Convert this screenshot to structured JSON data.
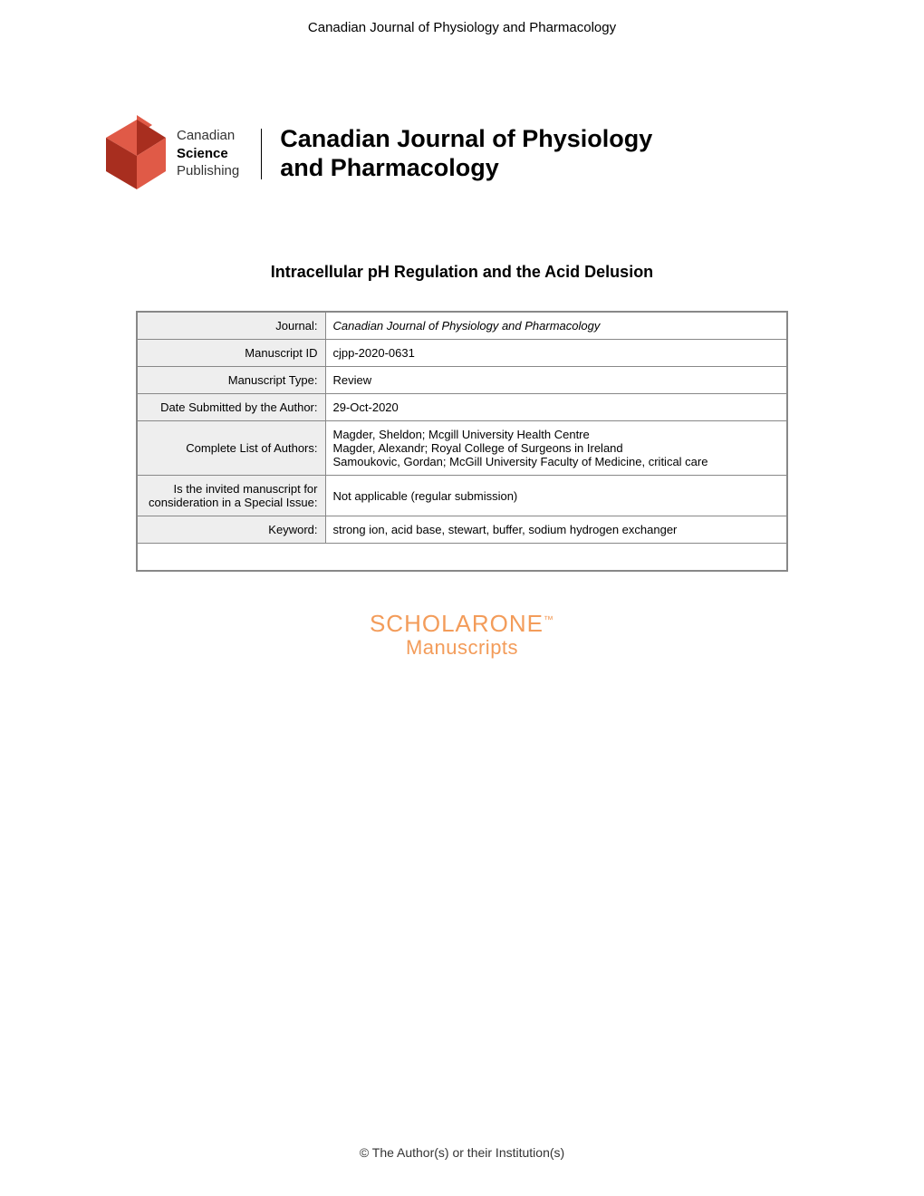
{
  "header": {
    "journal_name": "Canadian Journal of Physiology and Pharmacology"
  },
  "logo": {
    "publisher_line1": "Canadian",
    "publisher_line2": "Science",
    "publisher_line3": "Publishing",
    "journal_title_line1": "Canadian Journal of Physiology",
    "journal_title_line2": "and Pharmacology",
    "colors": {
      "logo_light": "#e05a47",
      "logo_dark": "#a82e1f"
    }
  },
  "manuscript": {
    "title": "Intracellular pH Regulation and the Acid Delusion"
  },
  "metadata": {
    "rows": [
      {
        "label": "Journal:",
        "value": "Canadian Journal of Physiology and Pharmacology",
        "italic": true
      },
      {
        "label": "Manuscript ID",
        "value": "cjpp-2020-0631"
      },
      {
        "label": "Manuscript Type:",
        "value": "Review"
      },
      {
        "label": "Date Submitted by the Author:",
        "value": "29-Oct-2020"
      },
      {
        "label": "Complete List of Authors:",
        "value": "Magder, Sheldon; Mcgill University Health Centre\nMagder, Alexandr; Royal College of Surgeons in Ireland\nSamoukovic, Gordan; McGill University Faculty of Medicine, critical care"
      },
      {
        "label": "Is the invited manuscript for consideration in a Special Issue:",
        "value": "Not applicable (regular submission)"
      },
      {
        "label": "Keyword:",
        "value": "strong ion, acid base, stewart, buffer, sodium hydrogen exchanger"
      }
    ]
  },
  "scholarone": {
    "line1": "SCHOLARONE",
    "tm": "™",
    "line2": "Manuscripts",
    "color": "#f39c5a"
  },
  "footer": {
    "copyright": "© The Author(s) or their Institution(s)"
  }
}
